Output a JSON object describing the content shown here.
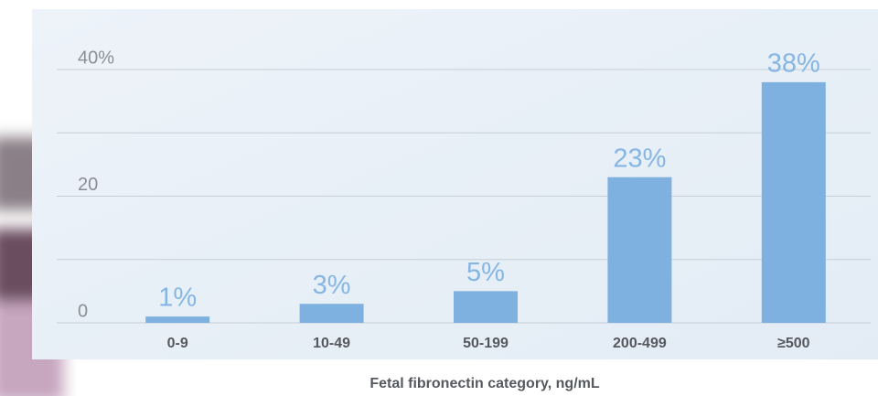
{
  "chart_data": {
    "type": "bar",
    "categories": [
      "0-9",
      "10-49",
      "50-199",
      "200-499",
      "≥500"
    ],
    "values": [
      1,
      3,
      5,
      23,
      38
    ],
    "value_labels": [
      "1%",
      "3%",
      "5%",
      "23%",
      "38%"
    ],
    "color": "#7fb1e0",
    "ylim": [
      0,
      40
    ],
    "yticks": [
      0,
      20,
      {
        "value": 40,
        "label": "40%"
      }
    ],
    "minor_grid": [
      10,
      30
    ],
    "grid": true,
    "xlabel": "Fetal fibronectin category, ng/mL"
  }
}
